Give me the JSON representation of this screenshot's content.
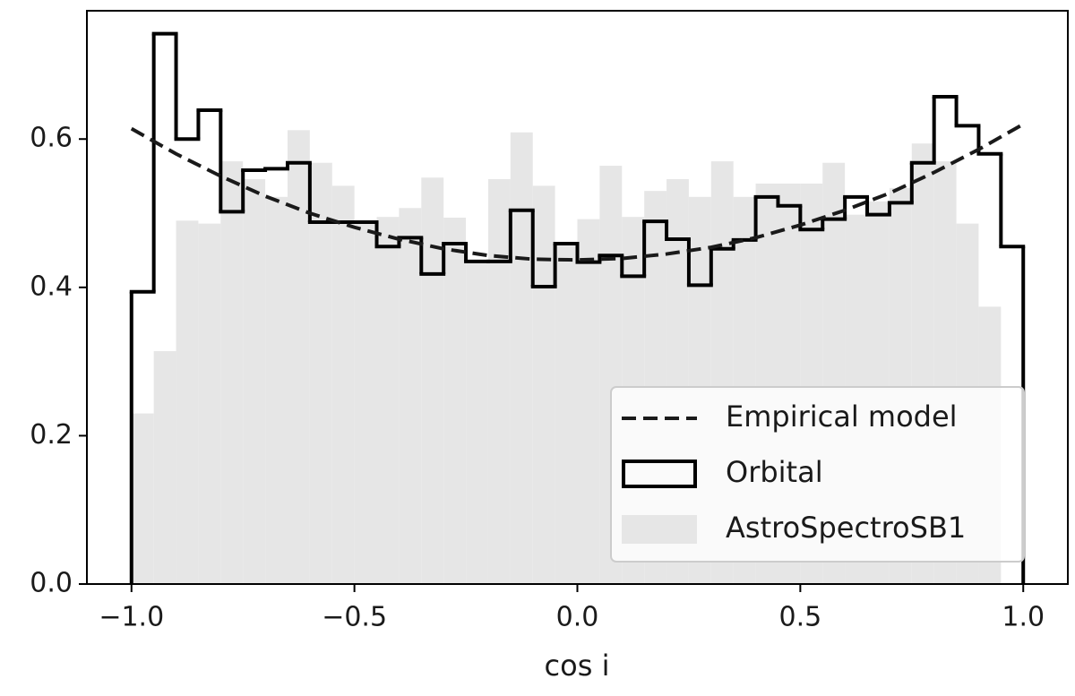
{
  "chart_data": {
    "type": "histogram",
    "xlabel": "cos i",
    "xlim": [
      -1.1,
      1.1
    ],
    "ylim": [
      0,
      0.773
    ],
    "xticks": [
      {
        "value": -1.0,
        "label": "−1.0"
      },
      {
        "value": -0.5,
        "label": "−0.5"
      },
      {
        "value": 0.0,
        "label": "0.0"
      },
      {
        "value": 0.5,
        "label": "0.5"
      },
      {
        "value": 1.0,
        "label": "1.0"
      }
    ],
    "yticks": [
      {
        "value": 0.0,
        "label": "0.0"
      },
      0.2,
      0.4,
      0.6
    ],
    "legend": "lower right",
    "bins": [
      -1.0,
      -0.95,
      -0.9,
      -0.85,
      -0.8,
      -0.75,
      -0.7,
      -0.65,
      -0.6,
      -0.55,
      -0.5,
      -0.45,
      -0.4,
      -0.35,
      -0.3,
      -0.25,
      -0.2,
      -0.15,
      -0.1,
      -0.05,
      0.0,
      0.05,
      0.1,
      0.15,
      0.2,
      0.25,
      0.3,
      0.35,
      0.4,
      0.45,
      0.5,
      0.55,
      0.6,
      0.65,
      0.7,
      0.75,
      0.8,
      0.85,
      0.9,
      0.95,
      1.0
    ],
    "series": [
      {
        "name": "Empirical model",
        "style": "dashed",
        "color": "#1a1a1a",
        "x": [
          -1.0,
          -0.9,
          -0.8,
          -0.7,
          -0.6,
          -0.5,
          -0.4,
          -0.3,
          -0.2,
          -0.1,
          0.0,
          0.1,
          0.2,
          0.3,
          0.4,
          0.5,
          0.6,
          0.7,
          0.8,
          0.9,
          1.0
        ],
        "values": [
          0.614,
          0.58,
          0.55,
          0.523,
          0.5,
          0.481,
          0.465,
          0.452,
          0.443,
          0.438,
          0.437,
          0.439,
          0.445,
          0.454,
          0.467,
          0.484,
          0.504,
          0.527,
          0.555,
          0.586,
          0.62
        ]
      },
      {
        "name": "Orbital",
        "style": "step",
        "color": "#000000",
        "values": [
          0.394,
          0.742,
          0.6,
          0.639,
          0.502,
          0.558,
          0.56,
          0.568,
          0.488,
          0.488,
          0.488,
          0.455,
          0.467,
          0.418,
          0.459,
          0.435,
          0.435,
          0.504,
          0.401,
          0.459,
          0.434,
          0.443,
          0.415,
          0.489,
          0.465,
          0.403,
          0.452,
          0.464,
          0.522,
          0.51,
          0.478,
          0.492,
          0.522,
          0.498,
          0.514,
          0.568,
          0.657,
          0.618,
          0.58,
          0.455
        ]
      },
      {
        "name": "AstroSpectroSB1",
        "style": "filled",
        "color": "#e6e6e6",
        "values": [
          0.23,
          0.314,
          0.49,
          0.486,
          0.57,
          0.546,
          0.522,
          0.612,
          0.568,
          0.537,
          0.486,
          0.495,
          0.507,
          0.548,
          0.494,
          0.437,
          0.546,
          0.609,
          0.537,
          0.459,
          0.492,
          0.564,
          0.495,
          0.53,
          0.546,
          0.522,
          0.57,
          0.522,
          0.54,
          0.54,
          0.54,
          0.568,
          0.498,
          0.516,
          0.534,
          0.594,
          0.57,
          0.486,
          0.374,
          0
        ]
      }
    ]
  }
}
